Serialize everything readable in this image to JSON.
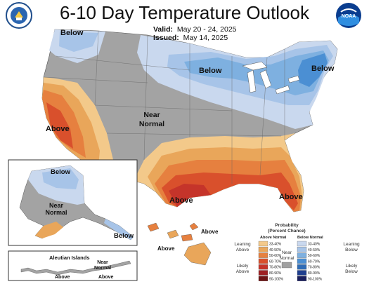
{
  "header": {
    "title": "6-10 Day Temperature Outlook",
    "valid_label": "Valid:",
    "valid_value": "May 20 - 24, 2025",
    "issued_label": "Issued:",
    "issued_value": "May 14, 2025"
  },
  "logos": {
    "left": "department-of-commerce-seal",
    "right_text": "NOAA"
  },
  "map_labels": {
    "below_nw": "Below",
    "below_north": "Below",
    "below_ne": "Below",
    "near_normal_line1": "Near",
    "near_normal_line2": "Normal",
    "above_west": "Above",
    "above_texas": "Above",
    "above_florida": "Above"
  },
  "alaska_labels": {
    "below": "Below",
    "near_line1": "Near",
    "near_line2": "Normal",
    "below_se": "Below"
  },
  "aleutian": {
    "title": "Aleutian Islands",
    "near_line1": "Near",
    "near_line2": "Normal",
    "above_left": "Above",
    "above_right": "Above"
  },
  "hawaii": {
    "above_left": "Above",
    "above_right": "Above"
  },
  "legend": {
    "title_line1": "Probability",
    "title_line2": "(Percent Chance)",
    "above_header": "Above Normal",
    "below_header": "Below Normal",
    "leaning_above_1": "Leaning",
    "leaning_above_2": "Above",
    "likely_above_1": "Likely",
    "likely_above_2": "Above",
    "near_normal_1": "Near",
    "near_normal_2": "Normal",
    "leaning_below_1": "Leaning",
    "leaning_below_2": "Below",
    "likely_below_1": "Likely",
    "likely_below_2": "Below",
    "above_ranges": [
      "33-40%",
      "40-50%",
      "50-60%",
      "60-70%",
      "70-80%",
      "80-90%",
      "90-100%"
    ],
    "below_ranges": [
      "33-40%",
      "40-50%",
      "50-60%",
      "60-70%",
      "70-80%",
      "80-90%",
      "90-100%"
    ],
    "above_colors": [
      "#f3c98a",
      "#e9a65a",
      "#e6803f",
      "#d9502c",
      "#c5342a",
      "#9e2023",
      "#6e1415"
    ],
    "below_colors": [
      "#c9d8ee",
      "#a7c4e8",
      "#7eb0e0",
      "#4b8fd3",
      "#2f6cb6",
      "#1f3f8f",
      "#1a1f5e"
    ],
    "near_color": "#a0a0a0"
  }
}
